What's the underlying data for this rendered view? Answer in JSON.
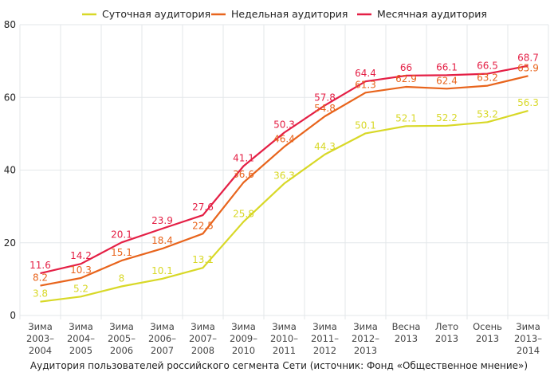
{
  "caption": "Аудитория пользователей российского сегмента Сети (источник: Фонд «Общественное мнение»)",
  "chart_data": {
    "type": "line",
    "title": "",
    "xlabel": "",
    "ylabel": "",
    "ylim": [
      0,
      80
    ],
    "yticks": [
      0,
      20,
      40,
      60,
      80
    ],
    "grid": true,
    "legend_position": "top",
    "categories": [
      [
        "Зима",
        "2003–",
        "2004"
      ],
      [
        "Зима",
        "2004–",
        "2005"
      ],
      [
        "Зима",
        "2005–",
        "2006"
      ],
      [
        "Зима",
        "2006–",
        "2007"
      ],
      [
        "Зима",
        "2007–",
        "2008"
      ],
      [
        "Зима",
        "2009–",
        "2010"
      ],
      [
        "Зима",
        "2010–",
        "2011"
      ],
      [
        "Зима",
        "2011–",
        "2012"
      ],
      [
        "Зима",
        "2012–",
        "2013"
      ],
      [
        "Весна",
        "2013"
      ],
      [
        "Лето",
        "2013"
      ],
      [
        "Осень",
        "2013"
      ],
      [
        "Зима",
        "2013–",
        "2014"
      ]
    ],
    "series": [
      {
        "name": "Суточная аудитория",
        "color": "#d8d827",
        "values": [
          3.8,
          5.2,
          8,
          10.1,
          13.1,
          25.8,
          36.3,
          44.3,
          50.1,
          52.1,
          52.2,
          53.2,
          56.3
        ],
        "labels": [
          "3.8",
          "5.2",
          "8",
          "10.1",
          "13.1",
          "25.8",
          "36.3",
          "44.3",
          "50.1",
          "52.1",
          "52.2",
          "53.2",
          "56.3"
        ]
      },
      {
        "name": "Недельная аудитория",
        "color": "#e8641c",
        "values": [
          8.2,
          10.3,
          15.1,
          18.4,
          22.5,
          36.6,
          46.4,
          54.8,
          61.3,
          62.9,
          62.4,
          63.2,
          65.9
        ],
        "labels": [
          "8.2",
          "10.3",
          "15.1",
          "18.4",
          "22.5",
          "36.6",
          "46.4",
          "54.8",
          "61.3",
          "62.9",
          "62.4",
          "63.2",
          "65.9"
        ]
      },
      {
        "name": "Месячная аудитория",
        "color": "#e41f45",
        "values": [
          11.6,
          14.2,
          20.1,
          23.9,
          27.6,
          41.1,
          50.3,
          57.8,
          64.4,
          66,
          66.1,
          66.5,
          68.7
        ],
        "labels": [
          "11.6",
          "14.2",
          "20.1",
          "23.9",
          "27.6",
          "41.1",
          "50.3",
          "57.8",
          "64.4",
          "66",
          "66.1",
          "66.5",
          "68.7"
        ]
      }
    ]
  },
  "colors": {
    "grid": "#e3e7ea",
    "axis_text": "#222222",
    "tick_text": "#444444"
  }
}
